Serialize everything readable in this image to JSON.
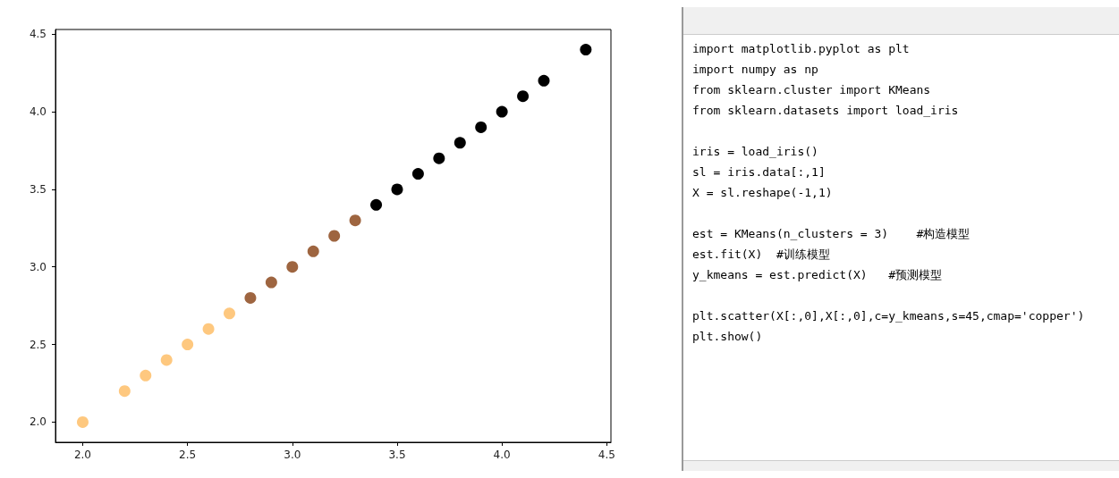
{
  "chart_data": [
    {
      "type": "scatter",
      "marker": "circle",
      "grid": false,
      "xlim": [
        1.87,
        4.52
      ],
      "ylim": [
        1.87,
        4.53
      ],
      "xticks": [
        {
          "value": 2,
          "label": "2.0"
        },
        {
          "value": 2.5,
          "label": "2.5"
        },
        {
          "value": 3,
          "label": "3.0"
        },
        {
          "value": 3.5,
          "label": "3.5"
        },
        {
          "value": 4,
          "label": "4.0"
        },
        {
          "value": 4.5,
          "label": "4.5"
        }
      ],
      "yticks": [
        {
          "value": 2,
          "label": "2.0"
        },
        {
          "value": 2.5,
          "label": "2.5"
        },
        {
          "value": 3,
          "label": "3.0"
        },
        {
          "value": 3.5,
          "label": "3.5"
        },
        {
          "value": 4,
          "label": "4.0"
        },
        {
          "value": 4.5,
          "label": "4.5"
        }
      ],
      "series": [
        {
          "color": "#fec87f",
          "x": [
            2.0,
            2.2,
            2.3,
            2.4,
            2.5,
            2.6,
            2.7
          ],
          "values": [
            2.0,
            2.2,
            2.3,
            2.4,
            2.5,
            2.6,
            2.7
          ]
        },
        {
          "color": "#9e6540",
          "x": [
            2.8,
            2.9,
            3.0,
            3.1,
            3.2,
            3.3
          ],
          "values": [
            2.8,
            2.9,
            3.0,
            3.1,
            3.2,
            3.3
          ]
        },
        {
          "color": "#000000",
          "x": [
            3.4,
            3.5,
            3.6,
            3.7,
            3.8,
            3.9,
            4.0,
            4.1,
            4.2,
            4.4
          ],
          "values": [
            3.4,
            3.5,
            3.6,
            3.7,
            3.8,
            3.9,
            4.0,
            4.1,
            4.2,
            4.4
          ]
        }
      ]
    },
    {
      "type": "other",
      "annotations": [
        "import matplotlib.pyplot as plt",
        "import numpy as np",
        "from sklearn.cluster import KMeans",
        "from sklearn.datasets import load_iris",
        "iris = load_iris()",
        "sl = iris.data[:,1]",
        "X = sl.reshape(-1,1)",
        "est = KMeans(n_clusters = 3)    #构造模型",
        "est.fit(X)  #训练模型",
        "y_kmeans = est.predict(X)   #预测模型",
        "plt.scatter(X[:,0],X[:,0],c=y_kmeans,s=45,cmap='copper')",
        "plt.show()"
      ]
    }
  ]
}
